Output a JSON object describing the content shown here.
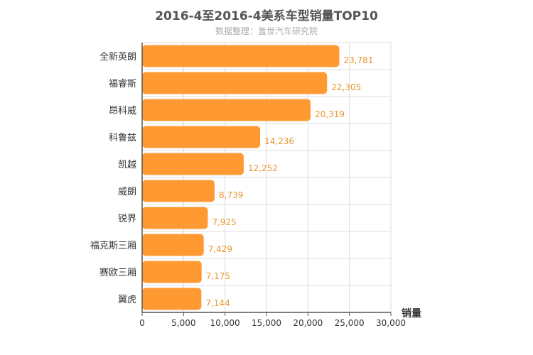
{
  "chart_data": {
    "type": "bar",
    "orientation": "horizontal",
    "title": "2016-4至2016-4美系车型销量TOP10",
    "subtitle": "数据整理：盖世汽车研究院",
    "xlabel": "销量",
    "ylabel": "",
    "xlim": [
      0,
      30000
    ],
    "xticks": [
      0,
      5000,
      10000,
      15000,
      20000,
      25000,
      30000
    ],
    "tick_labels": [
      "0",
      "5,000",
      "10,000",
      "15,000",
      "20,000",
      "25,000",
      "30,000"
    ],
    "categories": [
      "全新英朗",
      "福睿斯",
      "昂科威",
      "科鲁兹",
      "凯越",
      "威朗",
      "锐界",
      "福克斯三厢",
      "赛欧三厢",
      "翼虎"
    ],
    "values": [
      23781,
      22305,
      20319,
      14236,
      12252,
      8739,
      7925,
      7429,
      7175,
      7144
    ],
    "value_labels": [
      "23,781",
      "22,305",
      "20,319",
      "14,236",
      "12,252",
      "8,739",
      "7,925",
      "7,429",
      "7,175",
      "7,144"
    ],
    "grid": true,
    "legend": "none",
    "colors": {
      "bar": "#ff9a33",
      "value_label": "#e8962e",
      "grid": "#dddddd",
      "axis": "#555555"
    }
  }
}
